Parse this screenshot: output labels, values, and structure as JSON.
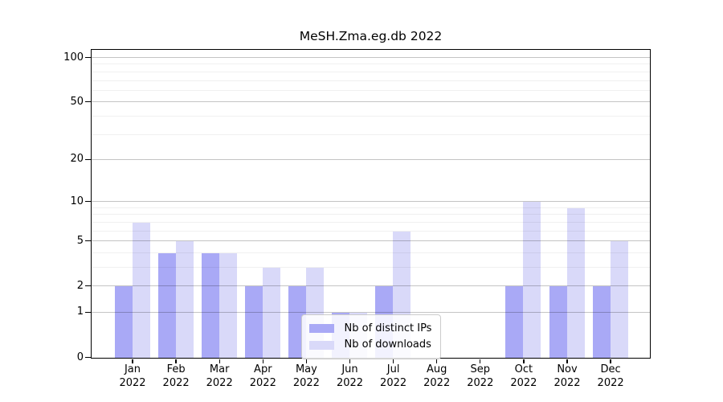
{
  "chart_data": {
    "type": "bar",
    "title": "MeSH.Zma.eg.db 2022",
    "categories": [
      "Jan",
      "Feb",
      "Mar",
      "Apr",
      "May",
      "Jun",
      "Jul",
      "Aug",
      "Sep",
      "Oct",
      "Nov",
      "Dec"
    ],
    "category_year": "2022",
    "series": [
      {
        "name": "Nb of distinct IPs",
        "color": "#a9a9f6",
        "values": [
          2,
          4,
          4,
          2,
          2,
          1,
          2,
          0,
          0,
          2,
          2,
          2
        ]
      },
      {
        "name": "Nb of downloads",
        "color": "#d9d9f9",
        "values": [
          7,
          5,
          4,
          3,
          3,
          1,
          6,
          0,
          0,
          10,
          9,
          5
        ]
      }
    ],
    "yscale": "log10(1+x)",
    "y_major_ticks": [
      0,
      1,
      2,
      5,
      10,
      20,
      50,
      100
    ],
    "y_minor_gridlines": [
      3,
      4,
      6,
      7,
      8,
      9,
      30,
      40,
      60,
      70,
      80,
      90
    ],
    "ylim": [
      0,
      112
    ],
    "xlabel": "",
    "ylabel": "",
    "grid": "horizontal-over-bars",
    "legend_position": "bottom-center"
  },
  "colors": {
    "background": "#ffffff",
    "axis_spine": "#000000",
    "text": "#000000",
    "major_grid": "#c4c4c4",
    "minor_grid": "#ececec",
    "legend_border": "#cccccc"
  }
}
